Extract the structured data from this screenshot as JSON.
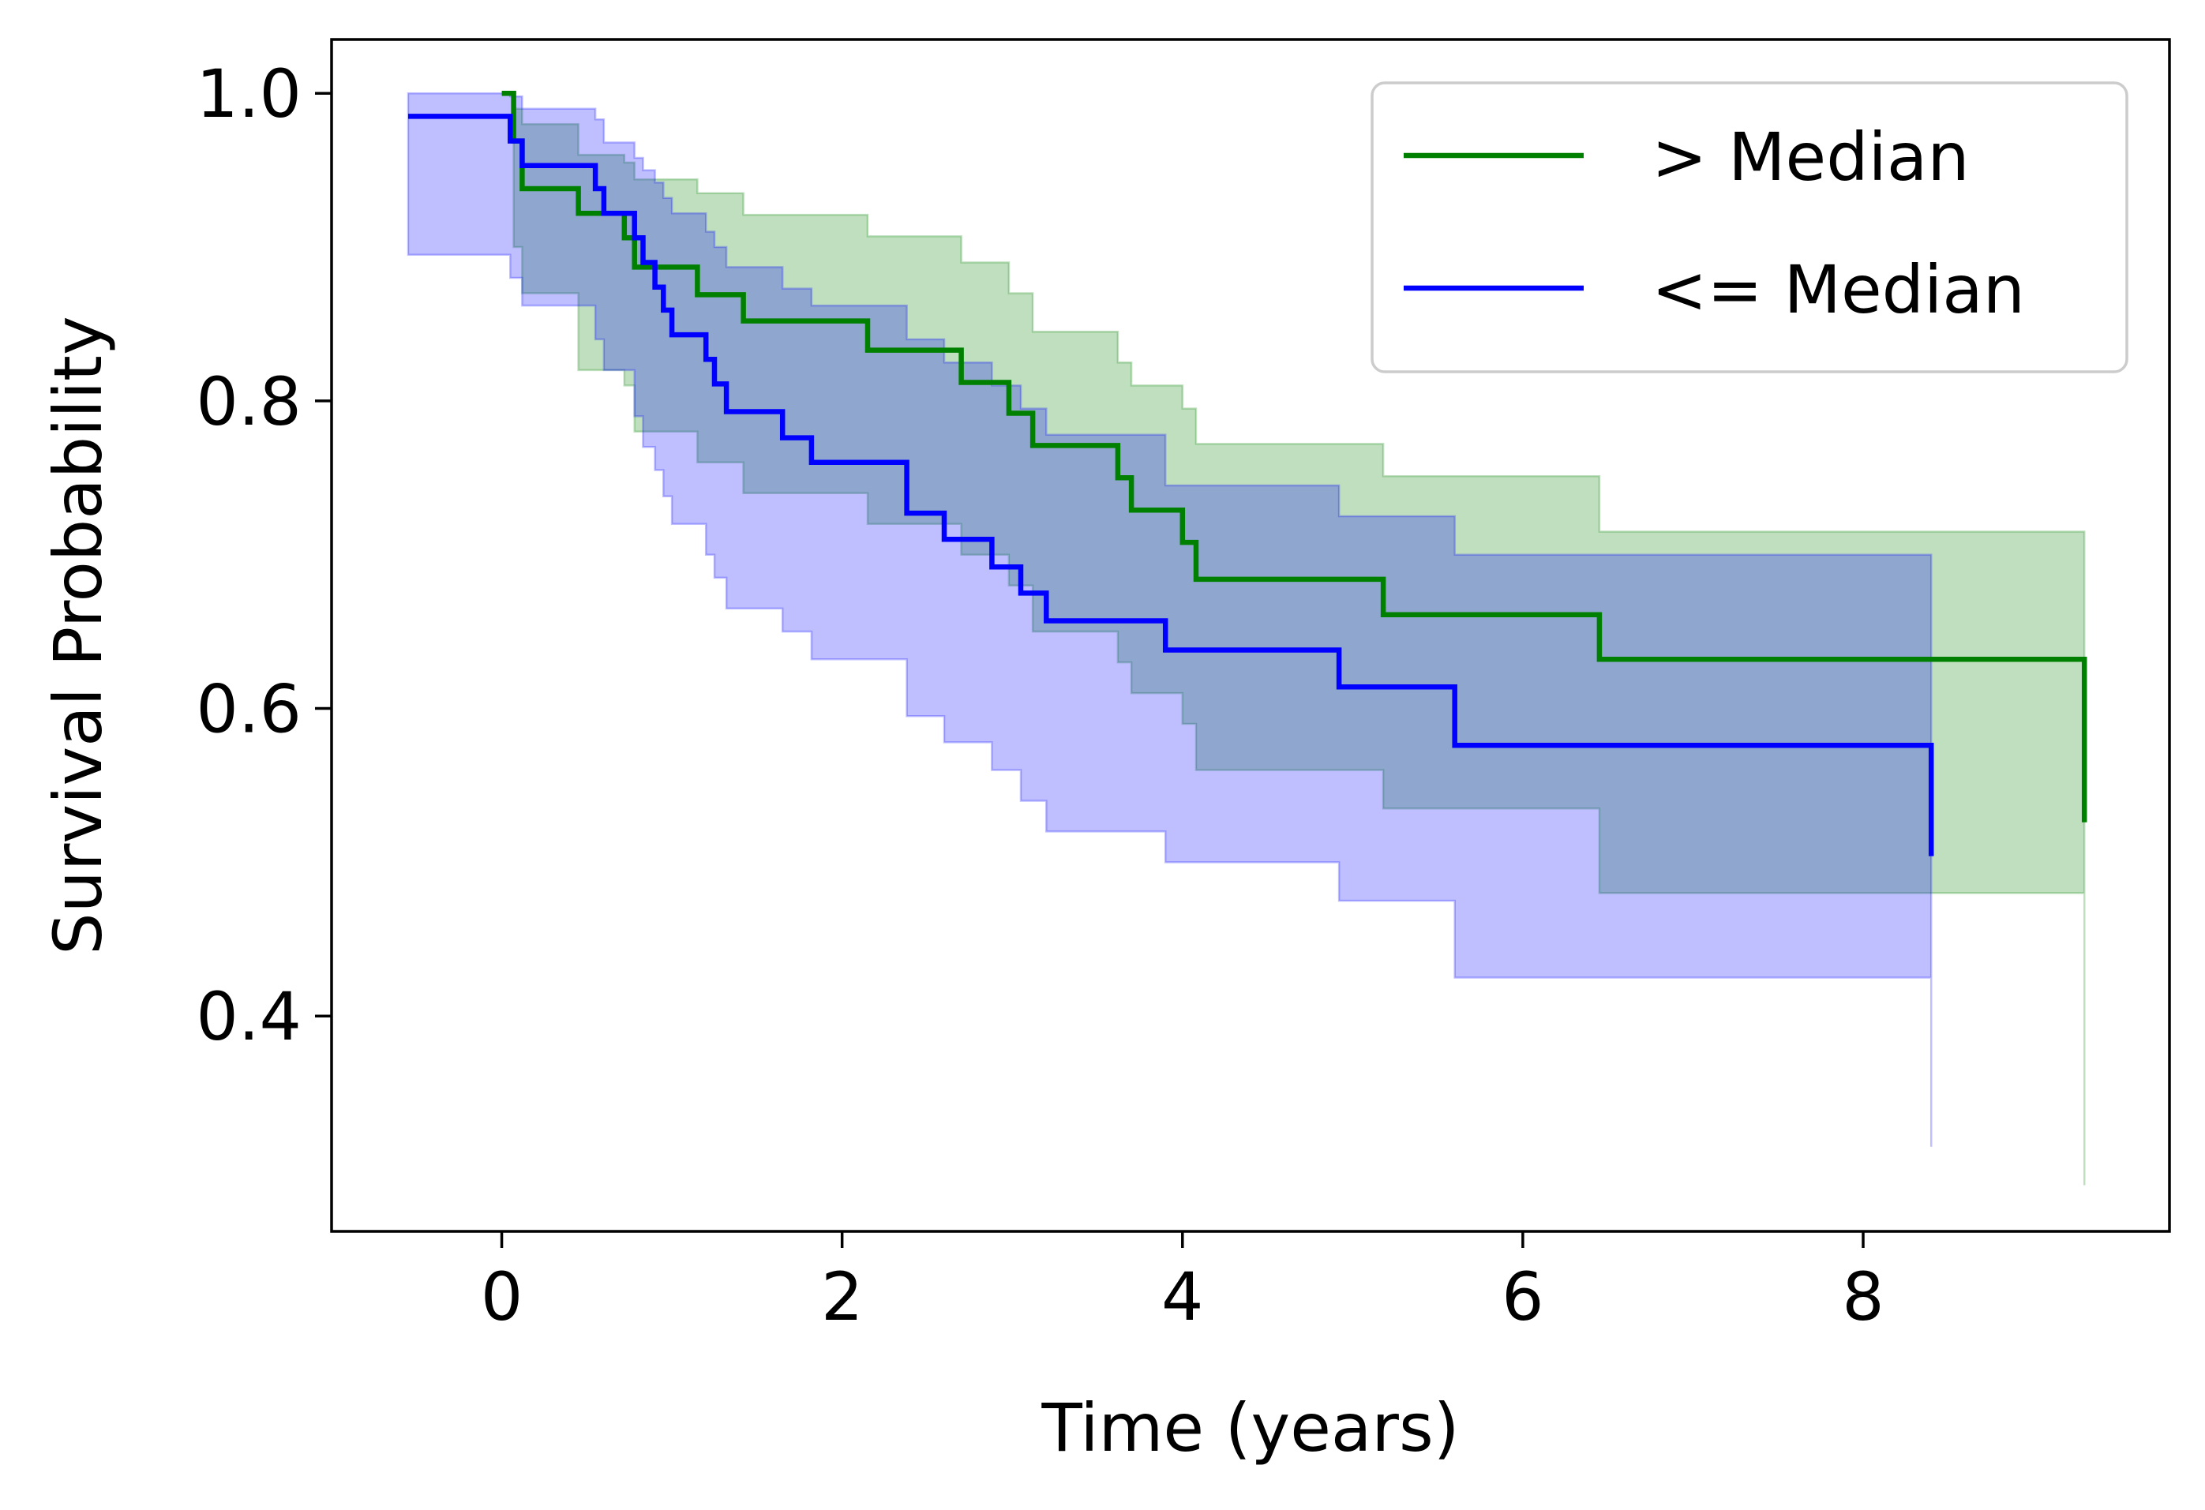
{
  "chart_data": {
    "type": "line",
    "subtype": "kaplan-meier-step",
    "title": "",
    "xlabel": "Time (years)",
    "ylabel": "Survival Probability",
    "xlim": [
      -1.0,
      9.8
    ],
    "ylim": [
      0.26,
      1.035
    ],
    "x_ticks": [
      0,
      2,
      4,
      6,
      8
    ],
    "x_tick_labels": [
      "0",
      "2",
      "4",
      "6",
      "8"
    ],
    "y_ticks": [
      0.4,
      0.6,
      0.8,
      1.0
    ],
    "y_tick_labels": [
      "0.4",
      "0.6",
      "0.8",
      "1.0"
    ],
    "grid": false,
    "legend_position": "top-right",
    "series": [
      {
        "name": "> Median",
        "color": "#008000",
        "band_color": "#008000",
        "band_opacity": 0.25,
        "x": [
          0.0,
          0.07,
          0.12,
          0.45,
          0.72,
          0.78,
          1.15,
          1.42,
          2.15,
          2.7,
          2.98,
          3.12,
          3.62,
          3.7,
          4.0,
          4.08,
          5.18,
          6.45,
          9.3
        ],
        "y": [
          1.0,
          0.969,
          0.938,
          0.922,
          0.906,
          0.887,
          0.869,
          0.852,
          0.833,
          0.812,
          0.792,
          0.771,
          0.75,
          0.729,
          0.708,
          0.684,
          0.661,
          0.632,
          0.526
        ],
        "ci_lower": [
          1.0,
          0.9,
          0.87,
          0.82,
          0.81,
          0.78,
          0.76,
          0.74,
          0.72,
          0.7,
          0.68,
          0.65,
          0.63,
          0.61,
          0.59,
          0.56,
          0.535,
          0.48,
          0.29
        ],
        "ci_upper": [
          1.0,
          0.99,
          0.98,
          0.96,
          0.955,
          0.944,
          0.935,
          0.921,
          0.907,
          0.89,
          0.87,
          0.845,
          0.825,
          0.81,
          0.795,
          0.772,
          0.751,
          0.715,
          0.715
        ]
      },
      {
        "name": "<= Median",
        "color": "#0000ff",
        "band_color": "#0000ff",
        "band_opacity": 0.25,
        "x": [
          -0.55,
          0.05,
          0.12,
          0.55,
          0.6,
          0.78,
          0.83,
          0.9,
          0.95,
          1.0,
          1.2,
          1.25,
          1.32,
          1.65,
          1.82,
          2.38,
          2.6,
          2.88,
          3.05,
          3.2,
          3.9,
          4.92,
          5.6,
          8.4
        ],
        "y": [
          0.985,
          0.969,
          0.953,
          0.938,
          0.922,
          0.906,
          0.89,
          0.874,
          0.859,
          0.843,
          0.827,
          0.811,
          0.793,
          0.776,
          0.76,
          0.727,
          0.71,
          0.692,
          0.675,
          0.657,
          0.638,
          0.614,
          0.576,
          0.504
        ],
        "ci_lower": [
          0.895,
          0.88,
          0.862,
          0.84,
          0.82,
          0.79,
          0.77,
          0.755,
          0.738,
          0.72,
          0.7,
          0.685,
          0.665,
          0.65,
          0.632,
          0.595,
          0.578,
          0.56,
          0.54,
          0.52,
          0.5,
          0.475,
          0.425,
          0.315
        ],
        "ci_upper": [
          1.0,
          0.998,
          0.99,
          0.983,
          0.968,
          0.958,
          0.95,
          0.942,
          0.932,
          0.922,
          0.91,
          0.9,
          0.887,
          0.873,
          0.862,
          0.84,
          0.825,
          0.81,
          0.795,
          0.778,
          0.745,
          0.725,
          0.7,
          0.665
        ]
      }
    ]
  }
}
